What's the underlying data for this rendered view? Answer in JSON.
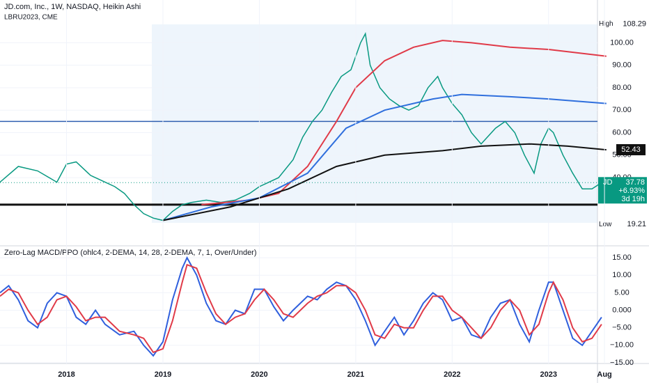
{
  "chart_data": [
    {
      "type": "line",
      "title": "JD.com, Inc., 1W, NASDAQ, Heikin Ashi",
      "subtitle": "LBRU2023, CME",
      "xlim": [
        2017.31,
        2023.63
      ],
      "ylim": [
        10,
        119
      ],
      "yticks": [
        {
          "value": 40,
          "label": "40.00"
        },
        {
          "value": 50,
          "label": "50.00"
        },
        {
          "value": 60,
          "label": "60.00"
        },
        {
          "value": 70,
          "label": "70.00"
        },
        {
          "value": 80,
          "label": "80.00"
        },
        {
          "value": 90,
          "label": "90.00"
        },
        {
          "value": 100,
          "label": "100.00"
        }
      ],
      "series": [
        {
          "name": "JD",
          "color": "#089981",
          "x": [
            2017.31,
            2017.5,
            2017.7,
            2017.9,
            2018.0,
            2018.1,
            2018.25,
            2018.4,
            2018.5,
            2018.6,
            2018.7,
            2018.8,
            2018.9,
            2019.0,
            2019.1,
            2019.2,
            2019.3,
            2019.45,
            2019.6,
            2019.75,
            2019.9,
            2020.0,
            2020.1,
            2020.2,
            2020.35,
            2020.45,
            2020.55,
            2020.65,
            2020.75,
            2020.85,
            2020.95,
            2021.05,
            2021.1,
            2021.15,
            2021.25,
            2021.35,
            2021.45,
            2021.55,
            2021.65,
            2021.75,
            2021.85,
            2021.9,
            2022.0,
            2022.1,
            2022.2,
            2022.3,
            2022.45,
            2022.55,
            2022.65,
            2022.75,
            2022.85,
            2022.92,
            2023.0,
            2023.05,
            2023.15,
            2023.25,
            2023.35,
            2023.45,
            2023.55
          ],
          "values": [
            38,
            45,
            43,
            38,
            46,
            47,
            41,
            38,
            36,
            33,
            28,
            24,
            22,
            21,
            25,
            28,
            29,
            30,
            29,
            30,
            33,
            36,
            38,
            40,
            48,
            58,
            65,
            70,
            78,
            85,
            88,
            100,
            104,
            90,
            80,
            75,
            72,
            70,
            72,
            80,
            85,
            80,
            73,
            68,
            60,
            55,
            62,
            65,
            60,
            50,
            42,
            55,
            62,
            60,
            50,
            42,
            35,
            35,
            37.78
          ]
        },
        {
          "color": "#e03a48",
          "x": [
            2019.4,
            2019.9,
            2020.2,
            2020.5,
            2020.8,
            2021.0,
            2021.3,
            2021.6,
            2021.9,
            2022.2,
            2022.6,
            2023.0,
            2023.6
          ],
          "values": [
            28,
            30,
            33,
            45,
            65,
            80,
            92,
            98,
            101,
            100,
            98,
            97,
            94
          ]
        },
        {
          "color": "#2f6fdd",
          "x": [
            2019.0,
            2019.5,
            2020.0,
            2020.5,
            2020.9,
            2021.3,
            2021.8,
            2022.1,
            2022.6,
            2023.0,
            2023.6
          ],
          "values": [
            21,
            27,
            31,
            42,
            62,
            70,
            75,
            77,
            76,
            75,
            73
          ]
        },
        {
          "color": "#111111",
          "x": [
            2019.0,
            2019.7,
            2020.3,
            2020.8,
            2021.3,
            2021.9,
            2022.3,
            2022.8,
            2023.2,
            2023.6
          ],
          "values": [
            21,
            27,
            35,
            45,
            50,
            52,
            54,
            55,
            54,
            52.4
          ]
        }
      ],
      "hlines": [
        {
          "value": 65,
          "color": "#2f5fb0"
        },
        {
          "value": 28,
          "color": "#111111"
        }
      ],
      "high": {
        "label": "High",
        "value": 108.29
      },
      "low": {
        "label": "Low",
        "value": 19.21
      },
      "level": 52.43,
      "last": {
        "symbol": "JD",
        "value": 37.78,
        "change": "+6.93%",
        "countdown": "3d 19h"
      }
    },
    {
      "type": "line",
      "title": "Zero-Lag MACD/PPO (ohlc4, 2-DEMA, 14, 28, 2-DEMA, 7, 1, Over/Under)",
      "xlim": [
        2017.31,
        2023.63
      ],
      "ylim": [
        -15.2,
        18
      ],
      "xticks": [
        2018,
        2019,
        2020,
        2021,
        2022,
        2023,
        {
          "value": 2023.58,
          "label": "Aug"
        }
      ],
      "yticks": [
        {
          "value": -15,
          "label": "−15.00"
        },
        {
          "value": -10,
          "label": "−10.00"
        },
        {
          "value": -5,
          "label": "−5.00"
        },
        {
          "value": 0,
          "label": "0.000"
        },
        {
          "value": 5,
          "label": "5.00"
        },
        {
          "value": 10,
          "label": "10.00"
        },
        {
          "value": 15,
          "label": "15.00"
        }
      ],
      "x": [
        2017.31,
        2017.4,
        2017.5,
        2017.6,
        2017.7,
        2017.8,
        2017.9,
        2018.0,
        2018.1,
        2018.2,
        2018.3,
        2018.4,
        2018.55,
        2018.7,
        2018.8,
        2018.9,
        2019.0,
        2019.1,
        2019.2,
        2019.25,
        2019.35,
        2019.45,
        2019.55,
        2019.65,
        2019.75,
        2019.85,
        2019.95,
        2020.05,
        2020.15,
        2020.25,
        2020.35,
        2020.5,
        2020.6,
        2020.7,
        2020.8,
        2020.9,
        2021.0,
        2021.1,
        2021.2,
        2021.3,
        2021.4,
        2021.5,
        2021.6,
        2021.7,
        2021.8,
        2021.9,
        2022.0,
        2022.1,
        2022.2,
        2022.3,
        2022.4,
        2022.5,
        2022.6,
        2022.7,
        2022.8,
        2022.9,
        2023.0,
        2023.05,
        2023.15,
        2023.25,
        2023.35,
        2023.45,
        2023.55
      ],
      "series": [
        {
          "color": "#2f5fdd",
          "values": [
            5,
            7,
            3,
            -3,
            -5,
            2,
            5,
            4,
            -2,
            -4,
            0,
            -4,
            -7,
            -6,
            -10,
            -13,
            -9,
            3,
            12,
            15,
            10,
            2,
            -3,
            -4,
            0,
            -1,
            6,
            6,
            1,
            -3,
            0,
            4,
            3,
            6,
            8,
            7,
            3,
            -3,
            -10,
            -6,
            -2,
            -7,
            -3,
            2,
            5,
            3,
            -3,
            -2,
            -7,
            -8,
            -2,
            2,
            3,
            -4,
            -9,
            0,
            8,
            8,
            0,
            -8,
            -10,
            -6,
            -2
          ]
        },
        {
          "color": "#e03a48",
          "values": [
            4,
            6,
            5,
            0,
            -4,
            -2,
            3,
            4,
            1,
            -3,
            -2,
            -2,
            -6,
            -7,
            -8,
            -12,
            -11,
            -3,
            8,
            13,
            12,
            5,
            -1,
            -4,
            -2,
            -1,
            3,
            6,
            3,
            -1,
            -2,
            2,
            4,
            5,
            7,
            7,
            5,
            0,
            -7,
            -8,
            -4,
            -5,
            -5,
            0,
            4,
            4,
            0,
            -2,
            -5,
            -8,
            -5,
            0,
            3,
            0,
            -7,
            -4,
            5,
            8,
            3,
            -5,
            -9,
            -8,
            -4
          ]
        }
      ]
    }
  ]
}
